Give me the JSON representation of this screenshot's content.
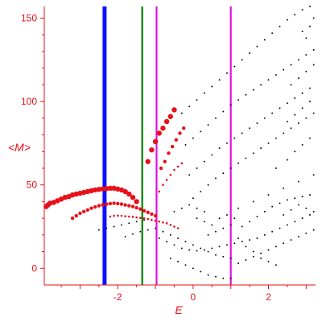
{
  "chart_data": {
    "type": "scatter",
    "title": "",
    "xlabel": "E",
    "ylabel": "<M>",
    "xlim": [
      -3.95,
      3.25
    ],
    "ylim": [
      -10,
      157
    ],
    "xticks": [
      -2,
      0,
      2
    ],
    "xtick_labels": [
      "-2",
      "0",
      "2"
    ],
    "yticks": [
      0,
      50,
      100,
      150
    ],
    "ytick_labels": [
      "0",
      "50",
      "100",
      "150"
    ],
    "grid": false,
    "legend": "none",
    "colors": {
      "axis": "#e8101a",
      "red_points": "#e8101a",
      "black_points": "#000000",
      "line_blue": "#1010ff",
      "line_green": "#008000",
      "line_magenta": "#e010e0"
    },
    "vertical_lines": [
      {
        "x": -2.35,
        "color": "#1010ff",
        "width": "thick"
      },
      {
        "x": -1.35,
        "color": "#008000",
        "width": "medium"
      },
      {
        "x": -0.97,
        "color": "#e010e0",
        "width": "medium"
      },
      {
        "x": 1.0,
        "color": "#e010e0",
        "width": "medium"
      }
    ],
    "series": [
      {
        "marker": "red_large",
        "points": [
          [
            -3.9,
            37
          ],
          [
            -3.85,
            38
          ],
          [
            -3.8,
            39
          ],
          [
            -3.7,
            39.5
          ],
          [
            -3.6,
            40.5
          ],
          [
            -3.5,
            41.5
          ],
          [
            -3.4,
            42.5
          ],
          [
            -3.3,
            43
          ],
          [
            -3.2,
            44
          ],
          [
            -3.1,
            44.5
          ],
          [
            -3.0,
            45
          ],
          [
            -2.9,
            45.5
          ],
          [
            -2.8,
            46
          ],
          [
            -2.7,
            46.5
          ],
          [
            -2.6,
            47
          ],
          [
            -2.5,
            47.3
          ],
          [
            -2.4,
            47.6
          ],
          [
            -2.3,
            47.8
          ],
          [
            -2.2,
            48
          ],
          [
            -2.1,
            48
          ],
          [
            -2.0,
            47.5
          ],
          [
            -1.9,
            47
          ],
          [
            -1.8,
            46
          ],
          [
            -1.7,
            44.5
          ],
          [
            -1.6,
            42.5
          ],
          [
            -1.5,
            40
          ],
          [
            -1.2,
            64
          ],
          [
            -1.1,
            71
          ],
          [
            -1.0,
            76
          ],
          [
            -0.9,
            81
          ],
          [
            -0.8,
            84
          ],
          [
            -0.7,
            88
          ],
          [
            -0.6,
            91
          ],
          [
            -0.5,
            95
          ]
        ]
      },
      {
        "marker": "red_medium",
        "points": [
          [
            -3.2,
            30
          ],
          [
            -3.1,
            31.5
          ],
          [
            -3.0,
            33
          ],
          [
            -2.9,
            34
          ],
          [
            -2.8,
            35
          ],
          [
            -2.7,
            36
          ],
          [
            -2.6,
            36.8
          ],
          [
            -2.5,
            37.5
          ],
          [
            -2.4,
            38
          ],
          [
            -2.3,
            38.5
          ],
          [
            -2.2,
            38.8
          ],
          [
            -2.1,
            39
          ],
          [
            -2.0,
            38.8
          ],
          [
            -1.9,
            38.5
          ],
          [
            -1.8,
            38
          ],
          [
            -1.7,
            37.5
          ],
          [
            -1.6,
            37
          ],
          [
            -1.5,
            36.3
          ],
          [
            -1.4,
            35.5
          ],
          [
            -1.3,
            34.5
          ],
          [
            -1.2,
            33.5
          ],
          [
            -1.1,
            32.5
          ],
          [
            -1.0,
            31.5
          ],
          [
            -0.85,
            60
          ],
          [
            -0.75,
            64
          ],
          [
            -0.65,
            69
          ],
          [
            -0.55,
            73
          ],
          [
            -0.45,
            77
          ],
          [
            -0.35,
            81
          ],
          [
            -0.25,
            84
          ]
        ]
      },
      {
        "marker": "red_small",
        "points": [
          [
            -2.2,
            31
          ],
          [
            -2.1,
            31.5
          ],
          [
            -2.0,
            31.6
          ],
          [
            -1.9,
            31.5
          ],
          [
            -1.8,
            31.2
          ],
          [
            -1.7,
            31
          ],
          [
            -1.6,
            30.8
          ],
          [
            -1.5,
            30.5
          ],
          [
            -1.4,
            30.2
          ],
          [
            -1.3,
            30
          ],
          [
            -1.2,
            29.5
          ],
          [
            -1.1,
            29
          ],
          [
            -1.0,
            28.5
          ],
          [
            -0.9,
            28
          ],
          [
            -0.8,
            27.5
          ],
          [
            -0.7,
            27
          ],
          [
            -0.6,
            26
          ],
          [
            -0.5,
            25
          ],
          [
            -0.4,
            24
          ],
          [
            -0.9,
            46
          ],
          [
            -0.8,
            50
          ],
          [
            -0.7,
            53
          ],
          [
            -0.6,
            56
          ],
          [
            -0.5,
            59
          ],
          [
            -0.4,
            61
          ],
          [
            -0.3,
            63
          ]
        ]
      },
      {
        "marker": "black_small",
        "points": [
          [
            -0.3,
            93
          ],
          [
            -0.1,
            97
          ],
          [
            0.1,
            101
          ],
          [
            0.3,
            105
          ],
          [
            0.5,
            109
          ],
          [
            0.7,
            113
          ],
          [
            0.9,
            117
          ],
          [
            1.1,
            121
          ],
          [
            1.3,
            125
          ],
          [
            1.5,
            129
          ],
          [
            1.7,
            133
          ],
          [
            1.9,
            137
          ],
          [
            2.1,
            141
          ],
          [
            2.3,
            145
          ],
          [
            2.5,
            149
          ],
          [
            2.7,
            152
          ],
          [
            2.9,
            155
          ],
          [
            3.1,
            157
          ],
          [
            -0.2,
            74
          ],
          [
            0.0,
            78
          ],
          [
            0.2,
            82
          ],
          [
            0.4,
            86
          ],
          [
            0.6,
            90
          ],
          [
            0.8,
            94
          ],
          [
            1.0,
            98
          ],
          [
            1.2,
            101
          ],
          [
            1.4,
            104
          ],
          [
            1.6,
            107
          ],
          [
            1.8,
            110
          ],
          [
            2.0,
            113
          ],
          [
            2.2,
            116
          ],
          [
            2.4,
            119
          ],
          [
            2.6,
            122
          ],
          [
            2.8,
            125
          ],
          [
            3.0,
            128
          ],
          [
            3.2,
            131
          ],
          [
            -0.1,
            56
          ],
          [
            0.1,
            60
          ],
          [
            0.3,
            64
          ],
          [
            0.5,
            68
          ],
          [
            0.7,
            72
          ],
          [
            0.9,
            75
          ],
          [
            1.1,
            78
          ],
          [
            1.3,
            81
          ],
          [
            1.5,
            84
          ],
          [
            1.7,
            87
          ],
          [
            1.9,
            90
          ],
          [
            2.1,
            93
          ],
          [
            2.3,
            96
          ],
          [
            2.5,
            99
          ],
          [
            2.7,
            102
          ],
          [
            2.9,
            105
          ],
          [
            3.1,
            108
          ],
          [
            0.0,
            42
          ],
          [
            0.2,
            46
          ],
          [
            0.4,
            50
          ],
          [
            0.6,
            54
          ],
          [
            0.8,
            57
          ],
          [
            1.0,
            60
          ],
          [
            1.2,
            63
          ],
          [
            1.4,
            66
          ],
          [
            1.6,
            69
          ],
          [
            1.8,
            72
          ],
          [
            2.0,
            75
          ],
          [
            2.2,
            78
          ],
          [
            2.4,
            81
          ],
          [
            2.6,
            84
          ],
          [
            2.8,
            87
          ],
          [
            3.0,
            90
          ],
          [
            3.2,
            93
          ],
          [
            -2.5,
            23
          ],
          [
            -2.3,
            24
          ],
          [
            -2.1,
            25
          ],
          [
            -1.9,
            26
          ],
          [
            -1.7,
            27
          ],
          [
            -1.5,
            28
          ],
          [
            -1.3,
            29
          ],
          [
            -1.8,
            19
          ],
          [
            -1.6,
            20.5
          ],
          [
            -1.4,
            22
          ],
          [
            -1.2,
            23
          ],
          [
            -1.0,
            24
          ],
          [
            -0.8,
            22
          ],
          [
            -0.6,
            20
          ],
          [
            -0.4,
            18
          ],
          [
            -0.2,
            16
          ],
          [
            0.0,
            14
          ],
          [
            0.2,
            12
          ],
          [
            0.4,
            10
          ],
          [
            0.6,
            8
          ],
          [
            0.8,
            7
          ],
          [
            1.0,
            6
          ],
          [
            -0.9,
            18
          ],
          [
            -0.7,
            16
          ],
          [
            -0.5,
            14
          ],
          [
            -0.3,
            12
          ],
          [
            -0.1,
            11
          ],
          [
            0.1,
            10.5
          ],
          [
            0.3,
            11
          ],
          [
            0.5,
            12
          ],
          [
            0.7,
            13
          ],
          [
            0.9,
            14
          ],
          [
            1.1,
            15
          ],
          [
            1.3,
            16
          ],
          [
            1.5,
            17
          ],
          [
            1.7,
            18
          ],
          [
            1.9,
            20
          ],
          [
            2.1,
            22
          ],
          [
            2.3,
            24
          ],
          [
            2.5,
            26
          ],
          [
            2.7,
            28
          ],
          [
            2.9,
            30
          ],
          [
            3.1,
            32
          ],
          [
            -0.6,
            6
          ],
          [
            -0.4,
            4
          ],
          [
            -0.2,
            2
          ],
          [
            0.0,
            0
          ],
          [
            0.2,
            -2
          ],
          [
            0.4,
            -4
          ],
          [
            0.6,
            -5
          ],
          [
            0.8,
            -6
          ],
          [
            1.0,
            -6
          ],
          [
            1.2,
            3
          ],
          [
            1.4,
            5
          ],
          [
            1.6,
            7
          ],
          [
            1.8,
            9
          ],
          [
            2.0,
            11
          ],
          [
            2.2,
            13
          ],
          [
            2.4,
            15
          ],
          [
            2.6,
            17
          ],
          [
            2.8,
            19
          ],
          [
            3.0,
            21
          ],
          [
            3.2,
            23
          ],
          [
            1.3,
            25
          ],
          [
            1.5,
            28
          ],
          [
            1.7,
            31
          ],
          [
            1.9,
            34
          ],
          [
            2.1,
            37
          ],
          [
            2.3,
            39
          ],
          [
            2.5,
            41
          ],
          [
            2.7,
            42
          ],
          [
            2.9,
            43
          ],
          [
            3.1,
            44
          ],
          [
            1.2,
            36
          ],
          [
            1.6,
            40
          ],
          [
            2.0,
            44
          ],
          [
            2.4,
            48
          ],
          [
            2.8,
            52
          ],
          [
            3.2,
            56
          ],
          [
            0.4,
            20
          ],
          [
            0.6,
            22
          ],
          [
            0.8,
            24
          ],
          [
            1.0,
            26
          ],
          [
            1.2,
            18
          ],
          [
            1.4,
            13
          ],
          [
            1.6,
            10
          ],
          [
            1.8,
            6
          ],
          [
            2.0,
            4
          ],
          [
            2.2,
            2
          ],
          [
            2.4,
            32
          ],
          [
            2.6,
            35
          ],
          [
            2.8,
            38
          ],
          [
            3.0,
            36
          ],
          [
            3.2,
            34
          ],
          [
            2.2,
            60
          ],
          [
            2.5,
            65
          ],
          [
            2.7,
            70
          ],
          [
            2.9,
            74
          ],
          [
            3.1,
            78
          ],
          [
            2.6,
            110
          ],
          [
            2.8,
            114
          ],
          [
            3.0,
            118
          ],
          [
            3.2,
            122
          ],
          [
            2.5,
            88
          ],
          [
            2.7,
            92
          ],
          [
            2.9,
            96
          ],
          [
            3.1,
            100
          ],
          [
            0.1,
            30
          ],
          [
            0.3,
            28
          ],
          [
            0.5,
            26
          ],
          [
            0.7,
            30
          ],
          [
            0.9,
            32
          ],
          [
            1.1,
            30
          ],
          [
            -0.5,
            34
          ],
          [
            -0.3,
            36
          ],
          [
            -0.1,
            38
          ],
          [
            0.1,
            36
          ],
          [
            0.3,
            34
          ],
          [
            3.1,
            145
          ],
          [
            3.2,
            150
          ],
          [
            2.9,
            142
          ],
          [
            3.0,
            138
          ]
        ]
      }
    ]
  }
}
